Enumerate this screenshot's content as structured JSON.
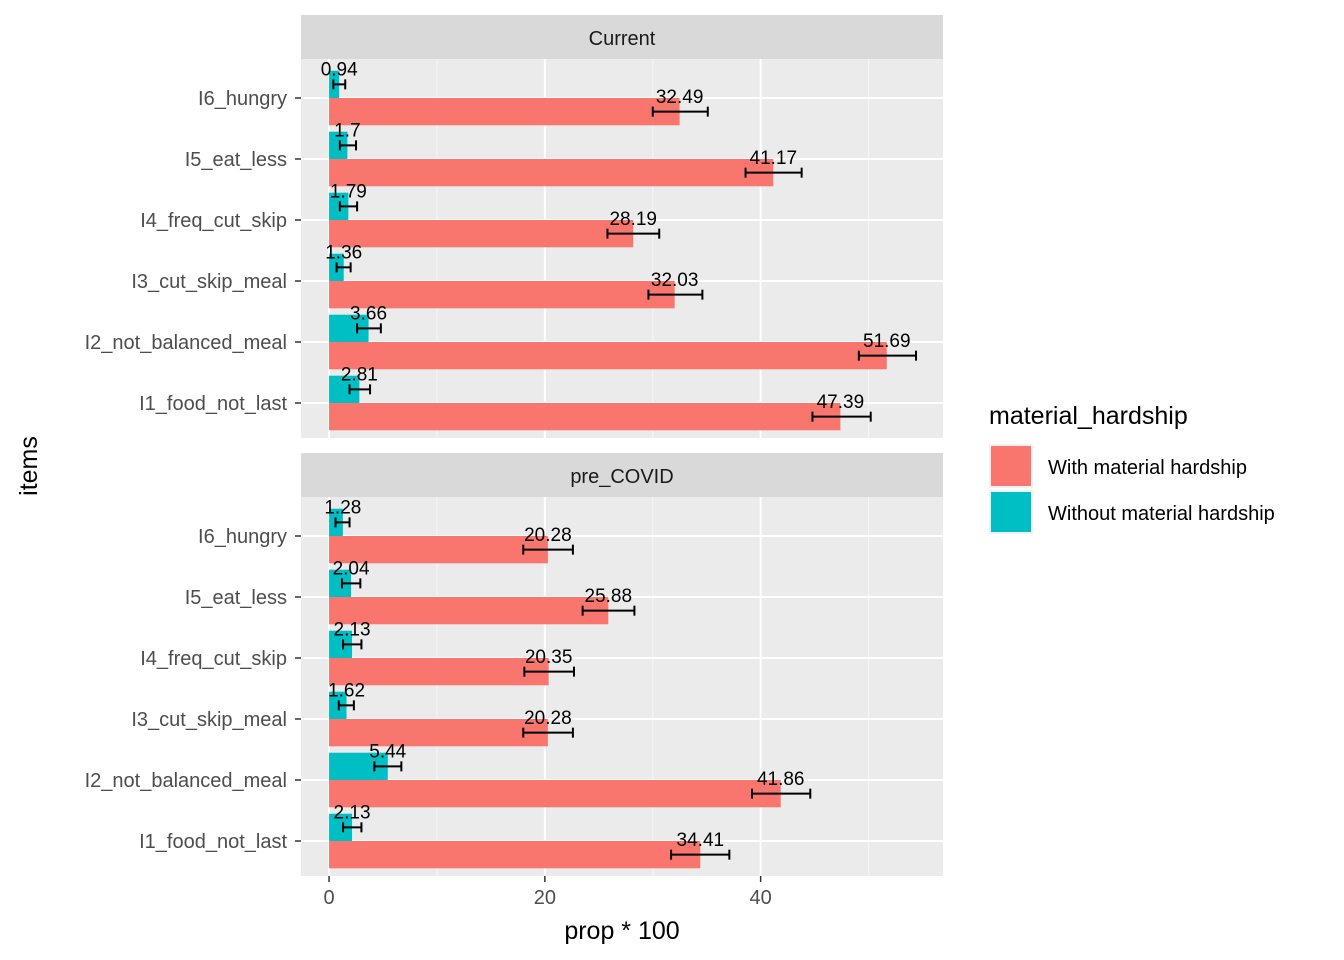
{
  "chart_data": {
    "type": "bar",
    "orientation": "horizontal",
    "xlabel": "prop * 100",
    "ylabel": "items",
    "xlim": [
      -2.6,
      56.9
    ],
    "xticks": [
      0,
      20,
      40
    ],
    "grid": true,
    "legend": {
      "title": "material_hardship",
      "placement": "right",
      "entries": [
        {
          "name": "With material hardship",
          "color": "#F8766D"
        },
        {
          "name": "Without material hardship",
          "color": "#00BFC4"
        }
      ]
    },
    "categories": [
      "I6_hungry",
      "I5_eat_less",
      "I4_freq_cut_skip",
      "I3_cut_skip_meal",
      "I2_not_balanced_meal",
      "I1_food_not_last"
    ],
    "panels": [
      {
        "title": "Current",
        "series": [
          {
            "name": "With material hardship",
            "color": "#F8766D",
            "values": [
              32.49,
              41.17,
              28.19,
              32.03,
              51.69,
              47.39
            ],
            "labels": [
              "32.49",
              "41.17",
              "28.19",
              "32.03",
              "51.69",
              "47.39"
            ],
            "err_low": [
              30.0,
              38.6,
              25.8,
              29.6,
              49.1,
              44.8
            ],
            "err_high": [
              35.1,
              43.8,
              30.6,
              34.6,
              54.4,
              50.2
            ]
          },
          {
            "name": "Without material hardship",
            "color": "#00BFC4",
            "values": [
              0.94,
              1.7,
              1.79,
              1.36,
              3.66,
              2.81
            ],
            "labels": [
              "0.94",
              "1.7",
              "1.79",
              "1.36",
              "3.66",
              "2.81"
            ],
            "err_low": [
              0.4,
              1.0,
              1.0,
              0.7,
              2.6,
              1.9
            ],
            "err_high": [
              1.5,
              2.5,
              2.6,
              2.0,
              4.8,
              3.8
            ]
          }
        ]
      },
      {
        "title": "pre_COVID",
        "series": [
          {
            "name": "With material hardship",
            "color": "#F8766D",
            "values": [
              20.28,
              25.88,
              20.35,
              20.28,
              41.86,
              34.41
            ],
            "labels": [
              "20.28",
              "25.88",
              "20.35",
              "20.28",
              "41.86",
              "34.41"
            ],
            "err_low": [
              18.0,
              23.5,
              18.1,
              18.0,
              39.2,
              31.7
            ],
            "err_high": [
              22.6,
              28.3,
              22.7,
              22.6,
              44.6,
              37.1
            ]
          },
          {
            "name": "Without material hardship",
            "color": "#00BFC4",
            "values": [
              1.28,
              2.04,
              2.13,
              1.62,
              5.44,
              2.13
            ],
            "labels": [
              "1.28",
              "2.04",
              "2.13",
              "1.62",
              "5.44",
              "2.13"
            ],
            "err_low": [
              0.6,
              1.2,
              1.3,
              0.9,
              4.2,
              1.3
            ],
            "err_high": [
              1.9,
              2.9,
              3.0,
              2.3,
              6.7,
              3.0
            ]
          }
        ]
      }
    ]
  }
}
